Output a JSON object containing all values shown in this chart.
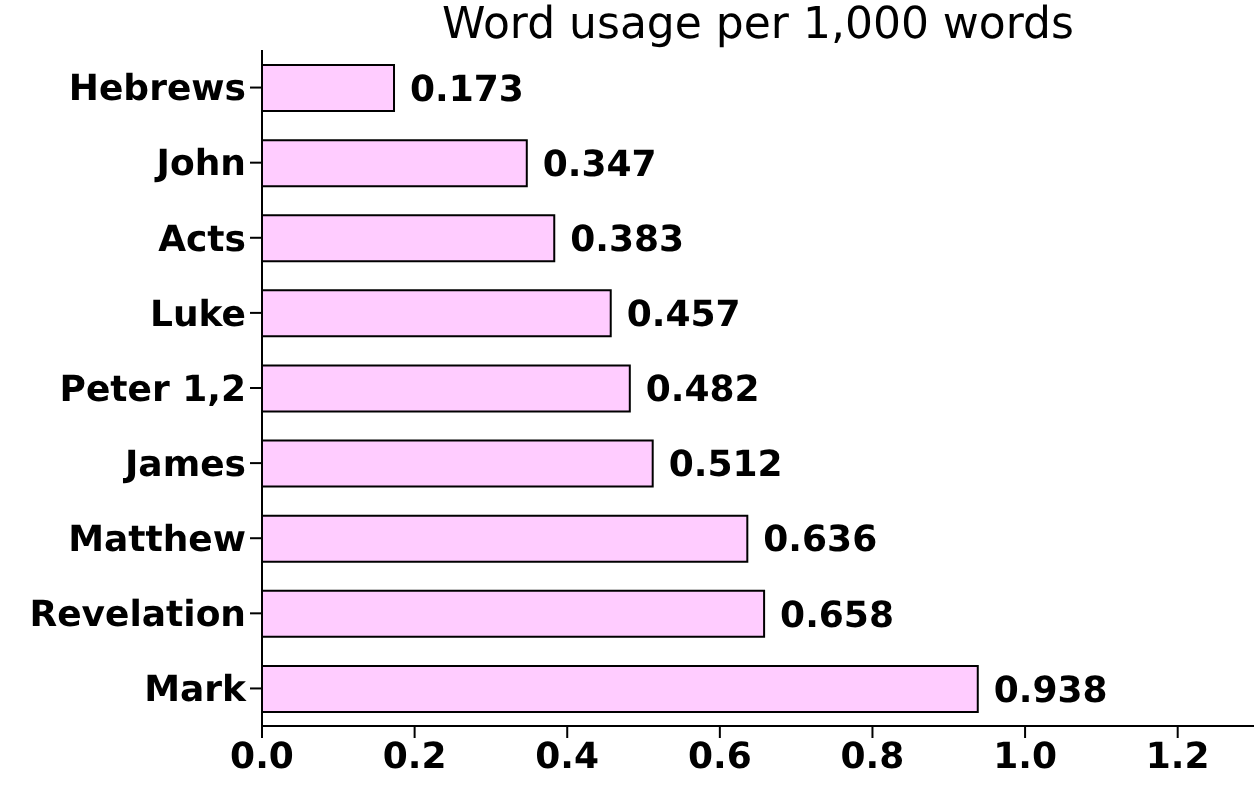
{
  "chart_data": {
    "type": "bar",
    "orientation": "horizontal",
    "title": "Word usage per 1,000 words",
    "categories": [
      "Hebrews",
      "John",
      "Acts",
      "Luke",
      "Peter 1,2",
      "James",
      "Matthew",
      "Revelation",
      "Mark"
    ],
    "values": [
      0.173,
      0.347,
      0.383,
      0.457,
      0.482,
      0.512,
      0.636,
      0.658,
      0.938
    ],
    "color": "#ffccff",
    "xlim": [
      0,
      1.3
    ],
    "xticks": [
      "0.0",
      0.2,
      0.4,
      0.6,
      0.8,
      {
        "value": 1,
        "label": "1.0"
      },
      1.2
    ],
    "data_labels": true,
    "grid": false,
    "legend": false
  }
}
